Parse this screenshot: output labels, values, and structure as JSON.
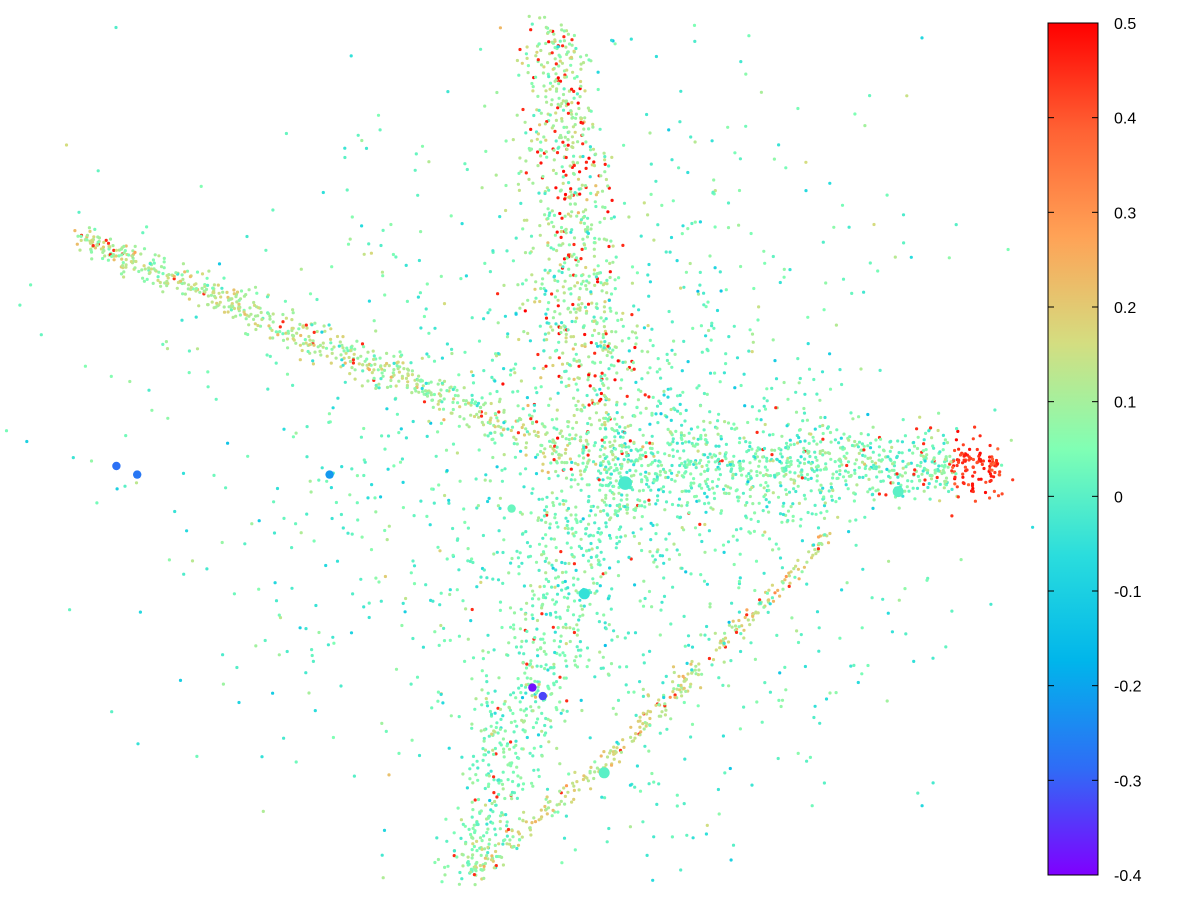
{
  "chart_data": {
    "type": "scatter",
    "title": "",
    "xlabel": "",
    "ylabel": "",
    "axes_visible": false,
    "grid": false,
    "colorbar": {
      "placement": "right",
      "colormap": "rainbow",
      "range": [
        -0.4,
        0.5
      ],
      "ticks": [
        0.5,
        0.4,
        0.3,
        0.2,
        0.1,
        0,
        -0.1,
        -0.2,
        -0.3,
        -0.4
      ],
      "tick_labels": [
        "0.5",
        "0.4",
        "0.3",
        "0.2",
        "0.1",
        "0",
        "-0.1",
        "-0.2",
        "-0.3",
        "-0.4"
      ],
      "stops": [
        "#7f00ff",
        "#2f6cf6",
        "#00b5eb",
        "#2adddd",
        "#80ffb4",
        "#d4dd80",
        "#ffa256",
        "#ff6133",
        "#ff0000"
      ]
    },
    "point_size": {
      "unit": "relative",
      "typical": 1,
      "max": 4
    },
    "structure": {
      "description": "Point cloud shaped like an aircraft silhouette: horizontal fuselage from far-left nose to right tail, upward and downward swept arms",
      "arms": [
        {
          "name": "left",
          "from": [
            0.0,
            0.48
          ],
          "to": [
            -1.0,
            0.75
          ],
          "dominant_value": 0.12
        },
        {
          "name": "right",
          "from": [
            0.0,
            0.48
          ],
          "to": [
            0.95,
            0.48
          ],
          "dominant_value": 0.05,
          "tip_value": 0.5
        },
        {
          "name": "up",
          "from": [
            0.0,
            0.48
          ],
          "to": [
            -0.09,
            1.0
          ],
          "dominant_value": 0.1,
          "edge_value": 0.45
        },
        {
          "name": "down",
          "from": [
            0.0,
            0.48
          ],
          "to": [
            -0.25,
            0.0
          ],
          "dominant_value": 0.05
        },
        {
          "name": "lower-right-edge",
          "from": [
            -0.25,
            0.0
          ],
          "to": [
            0.55,
            0.4
          ],
          "dominant_value": 0.15
        }
      ],
      "notable_points": [
        {
          "x": 0.06,
          "y": 0.46,
          "value": -0.02,
          "size": 4
        },
        {
          "x": -0.03,
          "y": 0.33,
          "value": -0.05,
          "size": 3
        },
        {
          "x": 0.01,
          "y": 0.12,
          "value": 0.0,
          "size": 3
        },
        {
          "x": -0.13,
          "y": 0.22,
          "value": -0.38,
          "size": 2
        },
        {
          "x": -0.11,
          "y": 0.21,
          "value": -0.33,
          "size": 2
        },
        {
          "x": -0.93,
          "y": 0.48,
          "value": -0.28,
          "size": 2
        },
        {
          "x": -0.89,
          "y": 0.47,
          "value": -0.27,
          "size": 2
        },
        {
          "x": -0.52,
          "y": 0.47,
          "value": -0.22,
          "size": 2
        },
        {
          "x": 0.71,
          "y": 0.45,
          "value": 0.0,
          "size": 3
        },
        {
          "x": -0.17,
          "y": 0.43,
          "value": 0.02,
          "size": 2
        }
      ]
    }
  }
}
